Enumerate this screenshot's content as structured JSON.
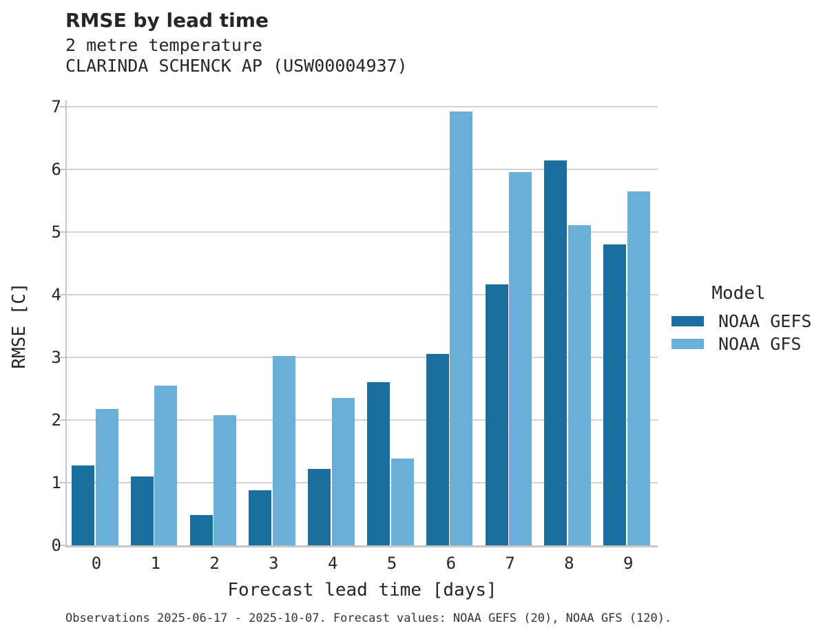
{
  "title": "RMSE by lead time",
  "subtitle_line1": "2 metre temperature",
  "subtitle_line2": "CLARINDA SCHENCK AP (USW00004937)",
  "caption": "Observations 2025-06-17 - 2025-10-07. Forecast values: NOAA GEFS (20), NOAA GFS (120).",
  "legend": {
    "title": "Model",
    "entries": [
      {
        "label": "NOAA GEFS",
        "color": "#1a6f9e"
      },
      {
        "label": "NOAA GFS",
        "color": "#6bafd7"
      }
    ]
  },
  "colors": {
    "gefs_dark_blue": "#1a6f9e",
    "gfs_light_blue": "#6bafd7",
    "gridline_gray": "#d2d2d2",
    "spine_gray": "#c6c6c6",
    "text_dark": "#262626"
  },
  "chart_data": {
    "type": "bar",
    "title": "RMSE by lead time",
    "subtitle": [
      "2 metre temperature",
      "CLARINDA SCHENCK AP (USW00004937)"
    ],
    "xlabel": "Forecast lead time [days]",
    "ylabel": "RMSE [C]",
    "categories": [
      "0",
      "1",
      "2",
      "3",
      "4",
      "5",
      "6",
      "7",
      "8",
      "9"
    ],
    "series": [
      {
        "name": "NOAA GEFS",
        "color": "#1a6f9e",
        "values": [
          1.28,
          1.1,
          0.48,
          0.88,
          1.22,
          2.61,
          3.05,
          4.16,
          6.14,
          4.8
        ]
      },
      {
        "name": "NOAA GFS",
        "color": "#6bafd7",
        "values": [
          2.18,
          2.55,
          2.08,
          3.02,
          2.35,
          1.38,
          6.92,
          5.96,
          5.11,
          5.65
        ]
      }
    ],
    "ylim": [
      0,
      7.1
    ],
    "yticks": [
      0,
      1,
      2,
      3,
      4,
      5,
      6,
      7
    ],
    "grid": "horizontal",
    "legend_position": "right",
    "legend_title": "Model"
  }
}
